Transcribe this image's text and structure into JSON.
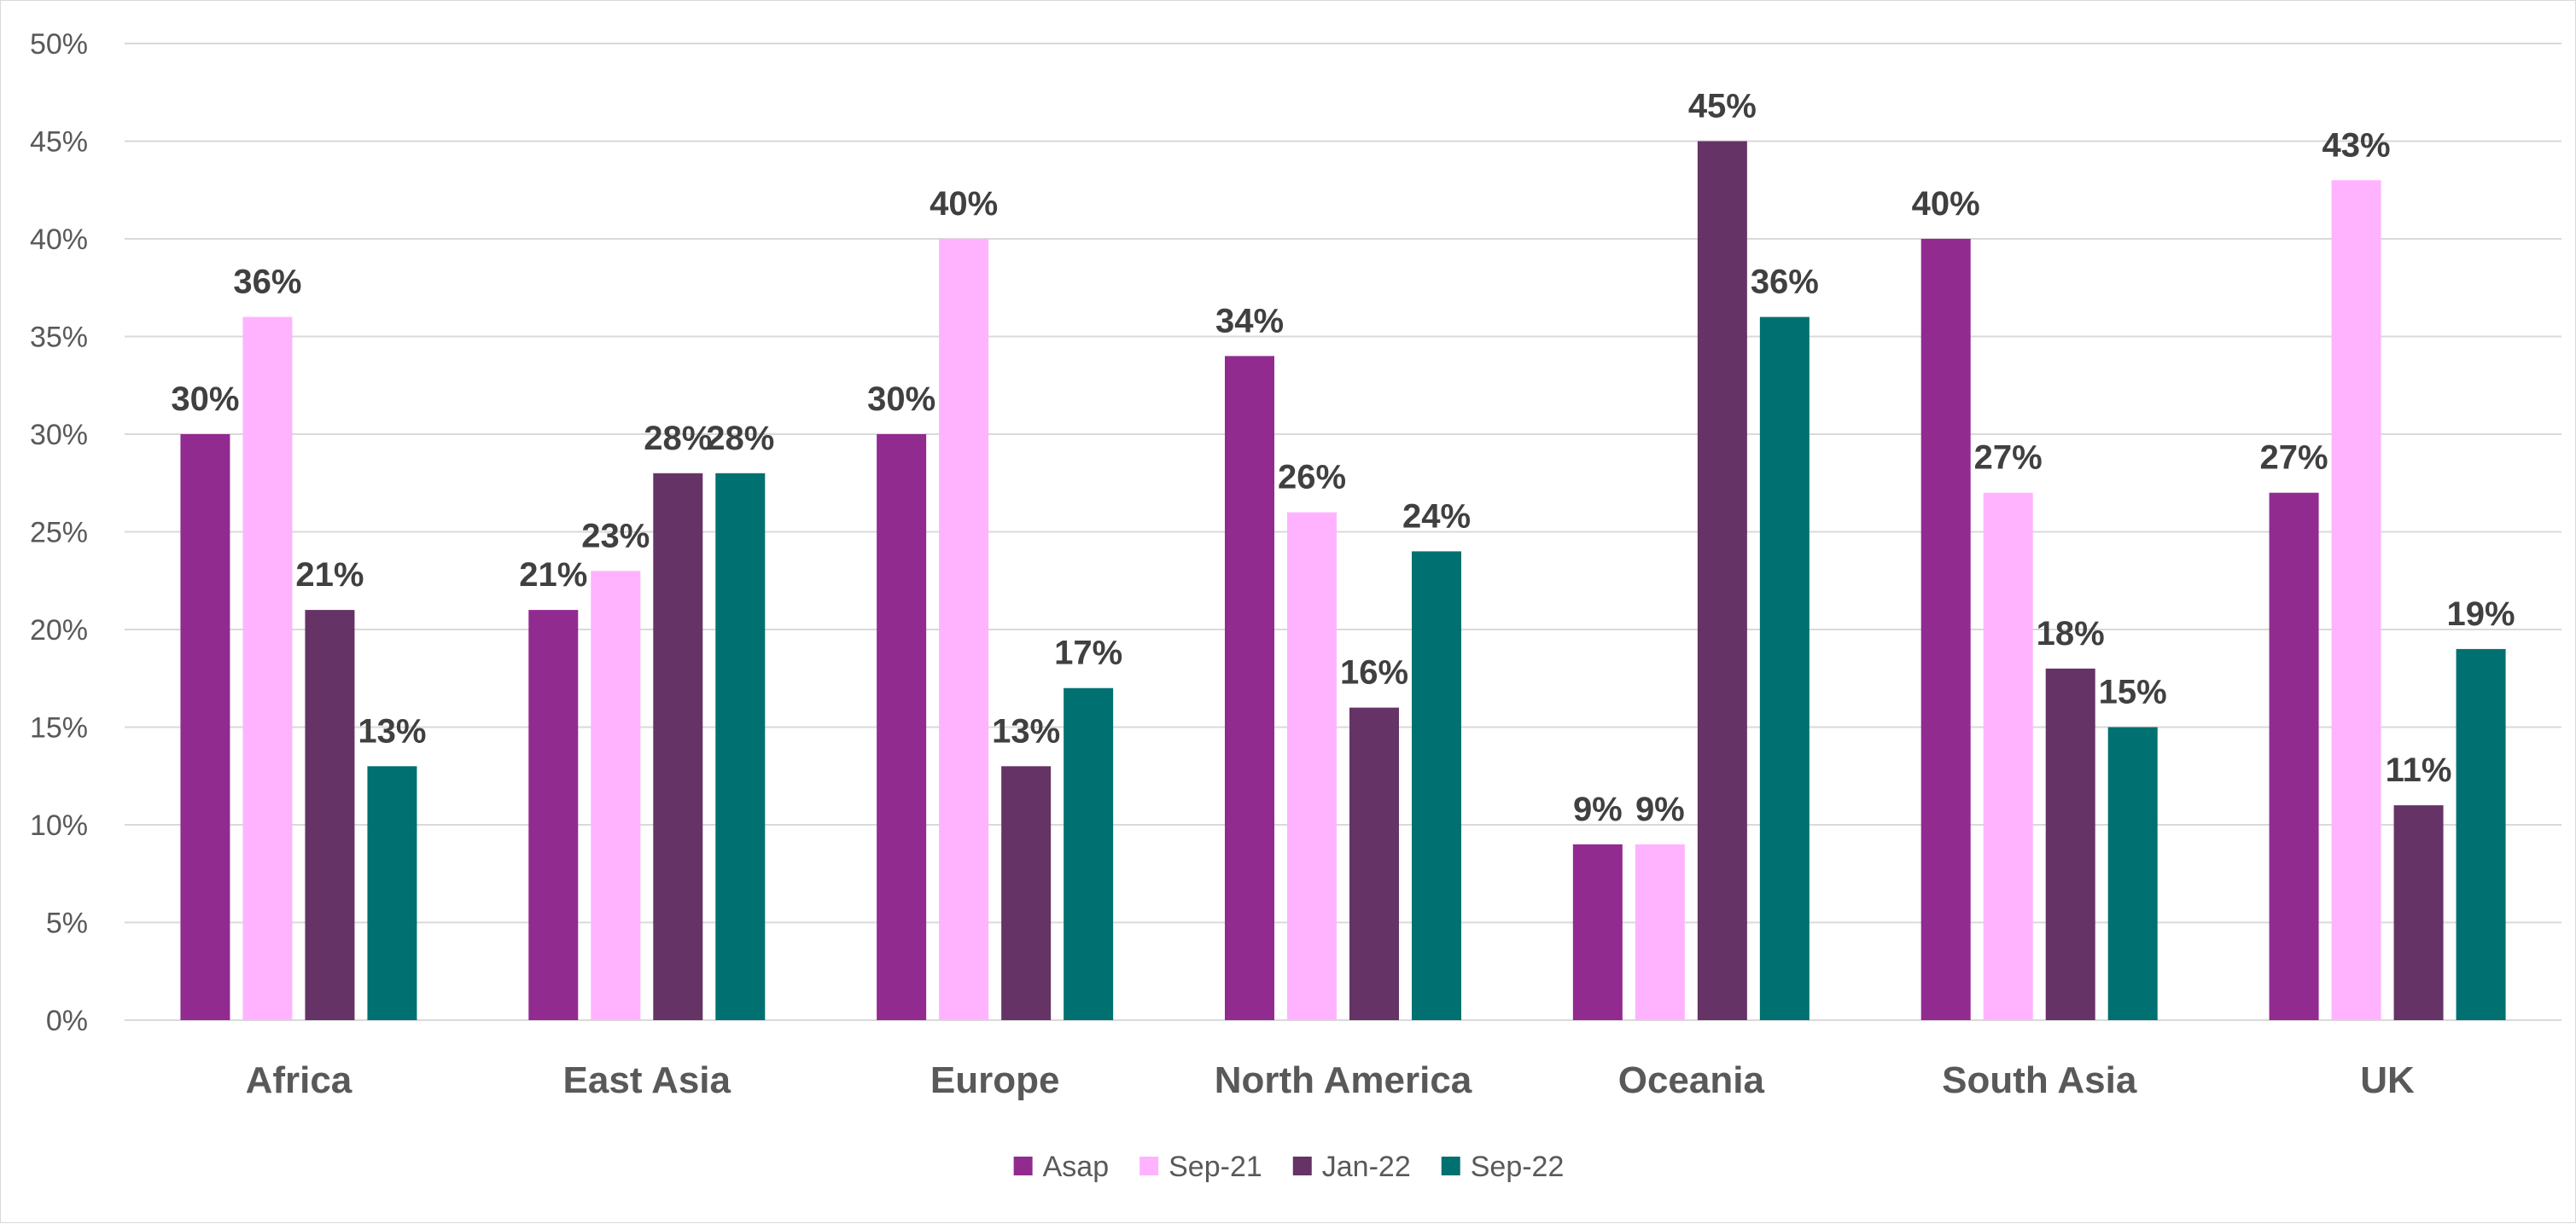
{
  "chart_data": {
    "type": "bar",
    "categories": [
      "Africa",
      "East Asia",
      "Europe",
      "North America",
      "Oceania",
      "South Asia",
      "UK"
    ],
    "series": [
      {
        "name": "Asap",
        "color": "#922b8f",
        "values": [
          30,
          21,
          30,
          34,
          9,
          40,
          27
        ]
      },
      {
        "name": "Sep-21",
        "color": "#ffb3ff",
        "values": [
          36,
          23,
          40,
          26,
          9,
          27,
          43
        ]
      },
      {
        "name": "Jan-22",
        "color": "#663366",
        "values": [
          21,
          28,
          13,
          16,
          45,
          18,
          11
        ]
      },
      {
        "name": "Sep-22",
        "color": "#007070",
        "values": [
          13,
          28,
          17,
          24,
          36,
          15,
          19
        ]
      }
    ],
    "ylim": [
      0,
      50
    ],
    "yticks": [
      "0%",
      "5%",
      "10%",
      "15%",
      "20%",
      "25%",
      "30%",
      "35%",
      "40%",
      "45%",
      "50%"
    ],
    "value_format": "percent",
    "grid": true,
    "legend_position": "bottom",
    "title": "",
    "xlabel": "",
    "ylabel": ""
  }
}
